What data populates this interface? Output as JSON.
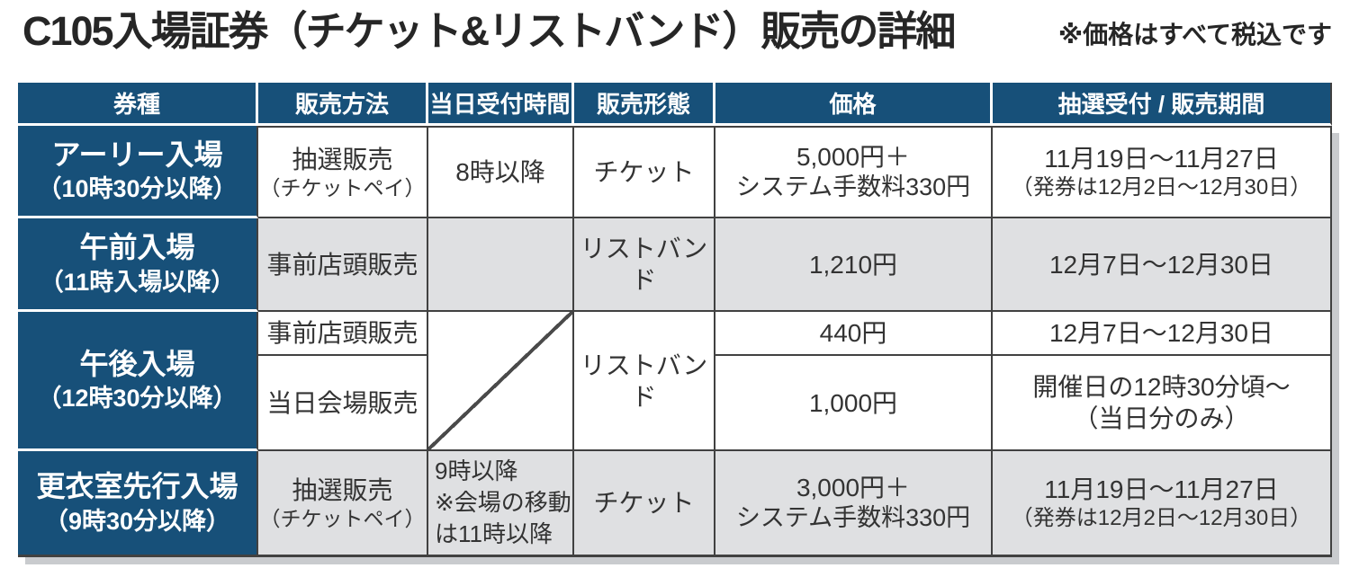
{
  "page": {
    "title": "C105入場証券（チケット&リストバンド）販売の詳細",
    "note": "※価格はすべて税込です"
  },
  "colors": {
    "header_navy": "#175079",
    "row_gray": "#dfe0e2",
    "border_dark": "#414141",
    "shadow_gray": "#c9cbce",
    "header_text": "#ffffff",
    "body_text": "#333333"
  },
  "table": {
    "header": {
      "kind": "券種",
      "method": "販売方法",
      "time": "当日受付時間",
      "form": "販売形態",
      "price": "価格",
      "period": "抽選受付 / 販売期間"
    },
    "row_early": {
      "kind1": "アーリー入場",
      "kind2": "（10時30分以降）",
      "method1": "抽選販売",
      "method2": "（チケットペイ）",
      "time": "8時以降",
      "form": "チケット",
      "price1": "5,000円＋",
      "price2": "システム手数料330円",
      "period1": "11月19日〜11月27日",
      "period2": "（発券は12月2日〜12月30日）"
    },
    "row_morning": {
      "kind1": "午前入場",
      "kind2": "（11時入場以降）",
      "method": "事前店頭販売",
      "form": "リストバンド",
      "price": "1,210円",
      "period": "12月7日〜12月30日"
    },
    "row_afternoon": {
      "kind1": "午後入場",
      "kind2": "（12時30分以降）",
      "form": "リストバンド",
      "sub_advance": {
        "method": "事前店頭販売",
        "price": "440円",
        "period": "12月7日〜12月30日"
      },
      "sub_sameday": {
        "method": "当日会場販売",
        "price": "1,000円",
        "period1": "開催日の12時30分頃〜",
        "period2": "（当日分のみ）"
      }
    },
    "row_dressing": {
      "kind1": "更衣室先行入場",
      "kind2": "（9時30分以降）",
      "method1": "抽選販売",
      "method2": "（チケットペイ）",
      "time1": "9時以降",
      "time2": "※会場の移動",
      "time3": "は11時以降",
      "form": "チケット",
      "price1": "3,000円＋",
      "price2": "システム手数料330円",
      "period1": "11月19日〜11月27日",
      "period2": "（発券は12月2日〜12月30日）"
    }
  }
}
